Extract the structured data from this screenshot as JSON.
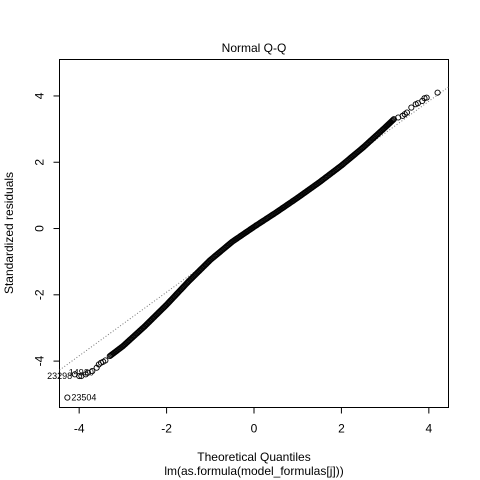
{
  "chart_data": {
    "type": "scatter",
    "title": "Normal Q-Q",
    "xlabel": "Theoretical Quantiles",
    "sublabel": "lm(as.formula(model_formulas[j]))",
    "ylabel": "Standardized residuals",
    "xlim": [
      -4.45,
      4.45
    ],
    "ylim": [
      -5.4,
      5.1
    ],
    "x_ticks": [
      -4,
      -2,
      0,
      2,
      4
    ],
    "x_tick_labels": [
      "-4",
      "-2",
      "0",
      "2",
      "4"
    ],
    "y_ticks": [
      -4,
      -2,
      0,
      2,
      4
    ],
    "y_tick_labels": [
      "-4",
      "-2",
      "0",
      "2",
      "4"
    ],
    "grid": false,
    "reference_line": {
      "style": "dotted",
      "slope": 0.96,
      "intercept": 0.0
    },
    "quantile_curve": [
      [
        -3.3,
        -3.85
      ],
      [
        -3.0,
        -3.55
      ],
      [
        -2.5,
        -2.95
      ],
      [
        -2.0,
        -2.3
      ],
      [
        -1.5,
        -1.6
      ],
      [
        -1.0,
        -0.95
      ],
      [
        -0.5,
        -0.4
      ],
      [
        0.0,
        0.05
      ],
      [
        0.5,
        0.48
      ],
      [
        1.0,
        0.93
      ],
      [
        1.5,
        1.4
      ],
      [
        2.0,
        1.9
      ],
      [
        2.5,
        2.45
      ],
      [
        3.0,
        3.05
      ],
      [
        3.2,
        3.3
      ]
    ],
    "tail_points": [
      [
        -4.27,
        -5.1
      ],
      [
        -4.1,
        -4.4
      ],
      [
        -4.0,
        -4.45
      ],
      [
        -3.95,
        -4.45
      ],
      [
        -3.85,
        -4.4
      ],
      [
        -3.8,
        -4.35
      ],
      [
        -3.7,
        -4.3
      ],
      [
        -3.6,
        -4.2
      ],
      [
        -3.55,
        -4.1
      ],
      [
        -3.5,
        -4.05
      ],
      [
        -3.45,
        -4.02
      ],
      [
        -3.4,
        -3.98
      ],
      [
        3.3,
        3.35
      ],
      [
        3.4,
        3.4
      ],
      [
        3.45,
        3.45
      ],
      [
        3.5,
        3.5
      ],
      [
        3.6,
        3.65
      ],
      [
        3.7,
        3.75
      ],
      [
        3.75,
        3.78
      ],
      [
        3.85,
        3.85
      ],
      [
        3.9,
        3.93
      ],
      [
        3.95,
        3.95
      ],
      [
        4.2,
        4.1
      ]
    ],
    "annotations": [
      {
        "label": "23504",
        "x": -4.27,
        "y": -5.1
      },
      {
        "label": "14930",
        "x": -4.1,
        "y": -4.4
      },
      {
        "label": "23298",
        "x": -4.0,
        "y": -4.45
      }
    ]
  }
}
